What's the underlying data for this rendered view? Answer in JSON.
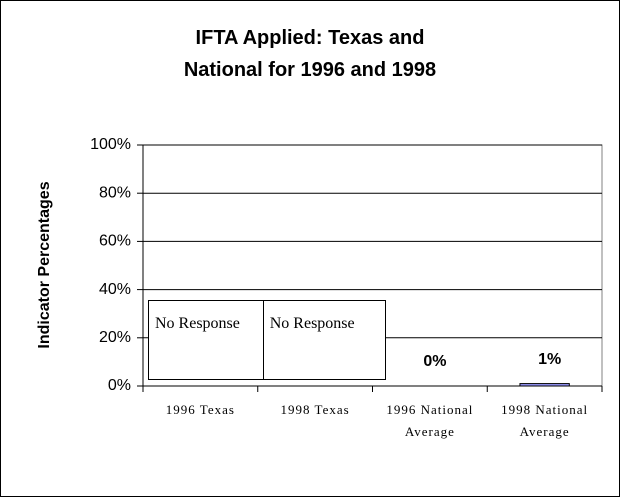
{
  "chart_data": {
    "type": "bar",
    "title": "IFTA Applied: Texas and National for 1996 and 1998",
    "y_label": "Indicator Percentages",
    "categories": [
      "1996 Texas",
      "1998 Texas",
      "1996 National Average",
      "1998 National Average"
    ],
    "values": [
      null,
      null,
      0,
      1
    ],
    "value_labels": [
      null,
      null,
      "0%",
      "1%"
    ],
    "color": "#9999ff",
    "annotations": [
      {
        "category": 0,
        "text": "No Response"
      },
      {
        "category": 1,
        "text": "No Response"
      }
    ],
    "ylim": [
      0,
      100
    ],
    "yticks": [
      {
        "value": 0,
        "label": "0%"
      },
      {
        "value": 20,
        "label": "20%"
      },
      {
        "value": 40,
        "label": "40%"
      },
      {
        "value": 60,
        "label": "60%"
      },
      {
        "value": 80,
        "label": "80%"
      },
      {
        "value": 100,
        "label": "100%"
      }
    ],
    "grid": true
  }
}
